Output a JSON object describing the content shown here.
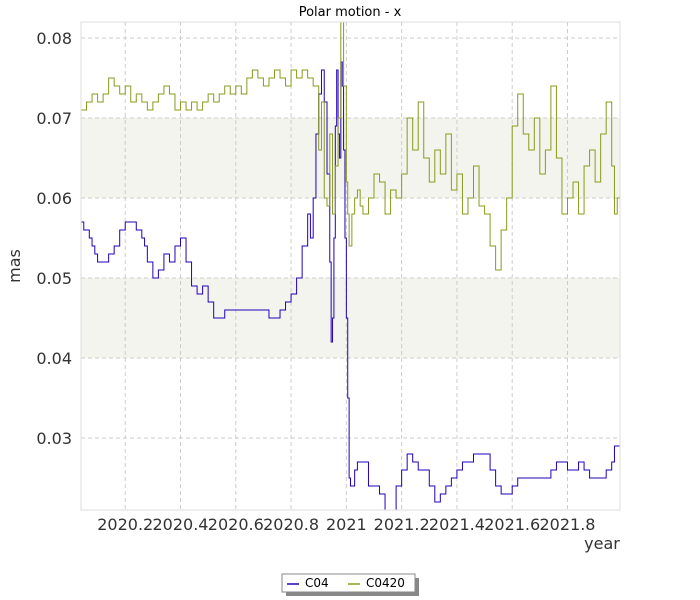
{
  "chart_data": {
    "type": "line",
    "title": "Polar motion - x",
    "xlabel": "year",
    "ylabel": "mas",
    "xlim": [
      2020.04,
      2021.99
    ],
    "ylim": [
      0.021,
      0.082
    ],
    "x_ticks": [
      2020.2,
      2020.4,
      2020.6,
      2020.8,
      2021.0,
      2021.2,
      2021.4,
      2021.6,
      2021.8
    ],
    "x_tick_labels": [
      "2020.2",
      "2020.4",
      "2020.6",
      "2020.8",
      "2021",
      "2021.2",
      "2021.4",
      "2021.6",
      "2021.8"
    ],
    "y_ticks": [
      0.03,
      0.04,
      0.05,
      0.06,
      0.07,
      0.08
    ],
    "y_tick_labels": [
      "0.03",
      "0.04",
      "0.05",
      "0.06",
      "0.07",
      "0.08"
    ],
    "grid": true,
    "shaded_bands": [
      [
        0.04,
        0.05
      ],
      [
        0.06,
        0.07
      ]
    ],
    "legend_position": "bottom-center",
    "colors": {
      "C04": "#2200bb",
      "C0420": "#8a9a1c",
      "band": "#f4f4ee",
      "grid": "#cccccc",
      "plot_border": "#dddddd"
    },
    "series": [
      {
        "name": "C04",
        "x": [
          2020.04,
          2020.05,
          2020.06,
          2020.07,
          2020.08,
          2020.09,
          2020.1,
          2020.12,
          2020.14,
          2020.16,
          2020.18,
          2020.2,
          2020.22,
          2020.24,
          2020.26,
          2020.27,
          2020.28,
          2020.3,
          2020.32,
          2020.34,
          2020.35,
          2020.36,
          2020.38,
          2020.4,
          2020.42,
          2020.44,
          2020.46,
          2020.48,
          2020.5,
          2020.52,
          2020.54,
          2020.56,
          2020.58,
          2020.6,
          2020.62,
          2020.64,
          2020.66,
          2020.68,
          2020.7,
          2020.72,
          2020.74,
          2020.76,
          2020.78,
          2020.8,
          2020.82,
          2020.84,
          2020.86,
          2020.87,
          2020.88,
          2020.89,
          2020.9,
          2020.91,
          2020.92,
          2020.93,
          2020.94,
          2020.945,
          2020.95,
          2020.955,
          2020.96,
          2020.965,
          2020.97,
          2020.975,
          2020.98,
          2020.985,
          2020.99,
          2020.995,
          2021.0,
          2021.005,
          2021.01,
          2021.015,
          2021.02,
          2021.03,
          2021.04,
          2021.06,
          2021.08,
          2021.1,
          2021.12,
          2021.14,
          2021.16,
          2021.18,
          2021.2,
          2021.22,
          2021.24,
          2021.26,
          2021.28,
          2021.3,
          2021.32,
          2021.34,
          2021.36,
          2021.38,
          2021.4,
          2021.42,
          2021.44,
          2021.46,
          2021.48,
          2021.5,
          2021.52,
          2021.54,
          2021.56,
          2021.58,
          2021.6,
          2021.62,
          2021.64,
          2021.66,
          2021.68,
          2021.7,
          2021.72,
          2021.74,
          2021.76,
          2021.78,
          2021.8,
          2021.82,
          2021.84,
          2021.86,
          2021.88,
          2021.9,
          2021.92,
          2021.94,
          2021.96,
          2021.97,
          2021.98,
          2021.99
        ],
        "values": [
          0.057,
          0.056,
          0.056,
          0.055,
          0.054,
          0.053,
          0.052,
          0.052,
          0.053,
          0.054,
          0.056,
          0.057,
          0.057,
          0.056,
          0.055,
          0.054,
          0.052,
          0.05,
          0.051,
          0.053,
          0.053,
          0.052,
          0.054,
          0.055,
          0.052,
          0.049,
          0.048,
          0.049,
          0.047,
          0.045,
          0.045,
          0.046,
          0.046,
          0.046,
          0.046,
          0.046,
          0.046,
          0.046,
          0.046,
          0.045,
          0.045,
          0.046,
          0.047,
          0.048,
          0.05,
          0.054,
          0.058,
          0.055,
          0.06,
          0.068,
          0.073,
          0.076,
          0.072,
          0.063,
          0.052,
          0.042,
          0.045,
          0.055,
          0.069,
          0.076,
          0.068,
          0.065,
          0.077,
          0.074,
          0.066,
          0.055,
          0.045,
          0.035,
          0.025,
          0.024,
          0.024,
          0.026,
          0.027,
          0.027,
          0.024,
          0.024,
          0.023,
          0.021,
          0.021,
          0.024,
          0.026,
          0.028,
          0.027,
          0.026,
          0.026,
          0.024,
          0.022,
          0.023,
          0.024,
          0.025,
          0.026,
          0.027,
          0.027,
          0.028,
          0.028,
          0.028,
          0.026,
          0.024,
          0.023,
          0.023,
          0.024,
          0.025,
          0.025,
          0.025,
          0.025,
          0.025,
          0.025,
          0.026,
          0.027,
          0.027,
          0.026,
          0.026,
          0.027,
          0.026,
          0.025,
          0.025,
          0.025,
          0.026,
          0.027,
          0.029,
          0.029,
          0.029
        ]
      },
      {
        "name": "C0420",
        "x": [
          2020.04,
          2020.05,
          2020.06,
          2020.08,
          2020.1,
          2020.12,
          2020.14,
          2020.16,
          2020.18,
          2020.2,
          2020.22,
          2020.24,
          2020.26,
          2020.28,
          2020.3,
          2020.32,
          2020.34,
          2020.36,
          2020.38,
          2020.4,
          2020.42,
          2020.44,
          2020.46,
          2020.48,
          2020.5,
          2020.52,
          2020.54,
          2020.56,
          2020.58,
          2020.6,
          2020.62,
          2020.64,
          2020.66,
          2020.68,
          2020.7,
          2020.72,
          2020.74,
          2020.76,
          2020.78,
          2020.8,
          2020.82,
          2020.84,
          2020.86,
          2020.88,
          2020.9,
          2020.91,
          2020.92,
          2020.93,
          2020.94,
          2020.95,
          2020.96,
          2020.97,
          2020.98,
          2020.99,
          2021.0,
          2021.005,
          2021.01,
          2021.02,
          2021.03,
          2021.04,
          2021.05,
          2021.06,
          2021.08,
          2021.1,
          2021.12,
          2021.14,
          2021.16,
          2021.18,
          2021.2,
          2021.22,
          2021.24,
          2021.26,
          2021.28,
          2021.3,
          2021.32,
          2021.34,
          2021.36,
          2021.38,
          2021.4,
          2021.42,
          2021.44,
          2021.46,
          2021.48,
          2021.5,
          2021.52,
          2021.54,
          2021.56,
          2021.58,
          2021.6,
          2021.62,
          2021.64,
          2021.66,
          2021.68,
          2021.7,
          2021.72,
          2021.74,
          2021.76,
          2021.78,
          2021.8,
          2021.82,
          2021.84,
          2021.86,
          2021.88,
          2021.9,
          2021.92,
          2021.94,
          2021.96,
          2021.97,
          2021.98,
          2021.99
        ],
        "values": [
          0.071,
          0.071,
          0.072,
          0.073,
          0.072,
          0.073,
          0.075,
          0.074,
          0.073,
          0.074,
          0.072,
          0.073,
          0.072,
          0.071,
          0.072,
          0.073,
          0.074,
          0.073,
          0.071,
          0.072,
          0.071,
          0.072,
          0.071,
          0.072,
          0.073,
          0.072,
          0.073,
          0.074,
          0.073,
          0.074,
          0.073,
          0.075,
          0.076,
          0.075,
          0.074,
          0.075,
          0.076,
          0.075,
          0.074,
          0.076,
          0.075,
          0.076,
          0.075,
          0.074,
          0.066,
          0.072,
          0.06,
          0.059,
          0.068,
          0.058,
          0.064,
          0.07,
          0.082,
          0.074,
          0.062,
          0.058,
          0.054,
          0.058,
          0.06,
          0.061,
          0.059,
          0.058,
          0.06,
          0.063,
          0.062,
          0.058,
          0.061,
          0.06,
          0.063,
          0.07,
          0.066,
          0.072,
          0.065,
          0.062,
          0.066,
          0.063,
          0.068,
          0.061,
          0.063,
          0.058,
          0.06,
          0.064,
          0.059,
          0.058,
          0.054,
          0.051,
          0.056,
          0.06,
          0.069,
          0.073,
          0.068,
          0.066,
          0.07,
          0.063,
          0.066,
          0.074,
          0.065,
          0.058,
          0.06,
          0.062,
          0.058,
          0.064,
          0.066,
          0.062,
          0.068,
          0.072,
          0.064,
          0.058,
          0.06,
          0.057
        ]
      }
    ]
  }
}
